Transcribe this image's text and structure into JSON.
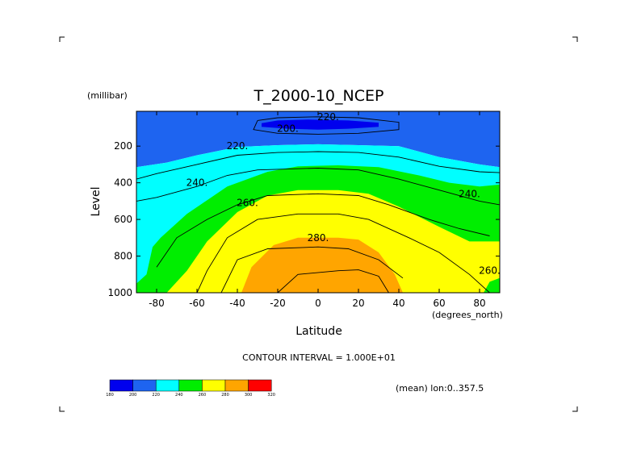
{
  "chart_data": {
    "type": "contour",
    "title": "T_2000-10_NCEP",
    "xlabel": "Latitude",
    "xunits": "(degrees_north)",
    "ylabel": "Level",
    "yunits": "(millibar)",
    "xlim": [
      -90,
      90
    ],
    "ylim": [
      1000,
      10
    ],
    "y_inverted": true,
    "x_ticks": [
      -80,
      -60,
      -40,
      -20,
      0,
      20,
      40,
      60,
      80
    ],
    "y_ticks": [
      200,
      400,
      600,
      800,
      1000
    ],
    "contour_interval_text": "CONTOUR INTERVAL = 1.000E+01",
    "mean_text": "(mean) lon:0..357.5",
    "contour_labels": [
      {
        "text": "220",
        "x": 5,
        "y": 40
      },
      {
        "text": "200",
        "x": -15,
        "y": 105
      },
      {
        "text": "220",
        "x": -40,
        "y": 200
      },
      {
        "text": "240",
        "x": -60,
        "y": 400
      },
      {
        "text": "260",
        "x": -35,
        "y": 510
      },
      {
        "text": "280",
        "x": 0,
        "y": 700
      },
      {
        "text": "240",
        "x": 75,
        "y": 460
      },
      {
        "text": "260",
        "x": 85,
        "y": 880
      }
    ],
    "levels": [
      {
        "value": 180,
        "label": "180",
        "color": "#0000ee"
      },
      {
        "value": 200,
        "label": "200",
        "color": "#1e64f0"
      },
      {
        "value": 220,
        "label": "220",
        "color": "#00ffff"
      },
      {
        "value": 240,
        "label": "240",
        "color": "#00ee00"
      },
      {
        "value": 260,
        "label": "260",
        "color": "#ffff00"
      },
      {
        "value": 280,
        "label": "280",
        "color": "#ffa500"
      },
      {
        "value": 300,
        "label": "300",
        "color": "#ff0000"
      },
      {
        "value": 320,
        "label": "320",
        "color": null
      }
    ],
    "filled_regions": [
      {
        "band": "200-220",
        "color": "#1e64f0",
        "boundary": [
          [
            -90,
            10
          ],
          [
            90,
            10
          ],
          [
            90,
            315
          ],
          [
            80,
            300
          ],
          [
            60,
            260
          ],
          [
            40,
            200
          ],
          [
            20,
            195
          ],
          [
            0,
            190
          ],
          [
            -20,
            195
          ],
          [
            -40,
            205
          ],
          [
            -60,
            250
          ],
          [
            -75,
            290
          ],
          [
            -90,
            315
          ]
        ]
      },
      {
        "band": "180-200",
        "color": "#0000ee",
        "boundary": [
          [
            -28,
            75
          ],
          [
            -20,
            60
          ],
          [
            -5,
            55
          ],
          [
            15,
            60
          ],
          [
            30,
            72
          ],
          [
            30,
            95
          ],
          [
            15,
            105
          ],
          [
            0,
            110
          ],
          [
            -15,
            105
          ],
          [
            -28,
            95
          ]
        ]
      },
      {
        "band": "200-220",
        "color": "#1e64f0",
        "boundary": [
          [
            -90,
            85
          ],
          [
            -82,
            85
          ],
          [
            -82,
            135
          ],
          [
            -90,
            140
          ]
        ]
      },
      {
        "band": "220-240",
        "color": "#00ffff",
        "boundary": [
          [
            -90,
            315
          ],
          [
            -75,
            290
          ],
          [
            -60,
            250
          ],
          [
            -40,
            205
          ],
          [
            -20,
            195
          ],
          [
            0,
            190
          ],
          [
            20,
            195
          ],
          [
            40,
            200
          ],
          [
            60,
            260
          ],
          [
            80,
            300
          ],
          [
            90,
            315
          ],
          [
            90,
            1000
          ],
          [
            -90,
            1000
          ]
        ]
      },
      {
        "band": "240-260",
        "color": "#00ee00",
        "boundary": [
          [
            -90,
            950
          ],
          [
            -85,
            900
          ],
          [
            -82,
            750
          ],
          [
            -78,
            700
          ],
          [
            -65,
            570
          ],
          [
            -45,
            420
          ],
          [
            -25,
            340
          ],
          [
            -10,
            310
          ],
          [
            10,
            305
          ],
          [
            30,
            315
          ],
          [
            50,
            360
          ],
          [
            65,
            400
          ],
          [
            80,
            420
          ],
          [
            90,
            410
          ],
          [
            90,
            1000
          ],
          [
            -90,
            1000
          ]
        ]
      },
      {
        "band": "260-280",
        "color": "#ffff00",
        "boundary": [
          [
            -75,
            1000
          ],
          [
            -65,
            880
          ],
          [
            -55,
            720
          ],
          [
            -40,
            560
          ],
          [
            -25,
            470
          ],
          [
            -10,
            440
          ],
          [
            10,
            440
          ],
          [
            25,
            460
          ],
          [
            40,
            530
          ],
          [
            60,
            640
          ],
          [
            75,
            720
          ],
          [
            90,
            720
          ],
          [
            90,
            1000
          ]
        ]
      },
      {
        "band": "240-260",
        "color": "#00ee00",
        "boundary": [
          [
            82,
            1000
          ],
          [
            85,
            940
          ],
          [
            90,
            920
          ],
          [
            90,
            1000
          ]
        ]
      },
      {
        "band": "280-300",
        "color": "#ffa500",
        "boundary": [
          [
            -38,
            1000
          ],
          [
            -33,
            860
          ],
          [
            -22,
            740
          ],
          [
            -10,
            700
          ],
          [
            10,
            700
          ],
          [
            20,
            710
          ],
          [
            30,
            780
          ],
          [
            38,
            900
          ],
          [
            42,
            1000
          ]
        ]
      }
    ],
    "contour_lines": [
      [
        [
          -30,
          60
        ],
        [
          -20,
          45
        ],
        [
          0,
          40
        ],
        [
          20,
          45
        ],
        [
          40,
          70
        ],
        [
          40,
          110
        ],
        [
          20,
          130
        ],
        [
          0,
          135
        ],
        [
          -20,
          130
        ],
        [
          -32,
          110
        ],
        [
          -30,
          60
        ]
      ],
      [
        [
          -90,
          380
        ],
        [
          -80,
          350
        ],
        [
          -60,
          300
        ],
        [
          -40,
          250
        ],
        [
          -20,
          235
        ],
        [
          0,
          230
        ],
        [
          20,
          235
        ],
        [
          40,
          260
        ],
        [
          60,
          310
        ],
        [
          80,
          340
        ],
        [
          90,
          345
        ]
      ],
      [
        [
          -90,
          500
        ],
        [
          -80,
          480
        ],
        [
          -60,
          420
        ],
        [
          -45,
          360
        ],
        [
          -30,
          330
        ],
        [
          0,
          320
        ],
        [
          20,
          330
        ],
        [
          40,
          380
        ],
        [
          60,
          440
        ],
        [
          80,
          500
        ],
        [
          90,
          520
        ]
      ],
      [
        [
          -80,
          860
        ],
        [
          -70,
          700
        ],
        [
          -55,
          600
        ],
        [
          -40,
          520
        ],
        [
          -25,
          470
        ],
        [
          0,
          460
        ],
        [
          20,
          470
        ],
        [
          35,
          520
        ],
        [
          55,
          600
        ],
        [
          70,
          650
        ],
        [
          85,
          690
        ]
      ],
      [
        [
          -60,
          1000
        ],
        [
          -55,
          880
        ],
        [
          -45,
          700
        ],
        [
          -30,
          600
        ],
        [
          -10,
          570
        ],
        [
          10,
          570
        ],
        [
          25,
          600
        ],
        [
          45,
          700
        ],
        [
          60,
          780
        ],
        [
          75,
          900
        ],
        [
          85,
          1000
        ]
      ],
      [
        [
          -48,
          1000
        ],
        [
          -40,
          820
        ],
        [
          -25,
          760
        ],
        [
          0,
          750
        ],
        [
          15,
          760
        ],
        [
          30,
          820
        ],
        [
          42,
          920
        ]
      ],
      [
        [
          -20,
          1000
        ],
        [
          -10,
          900
        ],
        [
          10,
          880
        ],
        [
          20,
          875
        ],
        [
          30,
          910
        ],
        [
          35,
          1000
        ]
      ]
    ]
  }
}
